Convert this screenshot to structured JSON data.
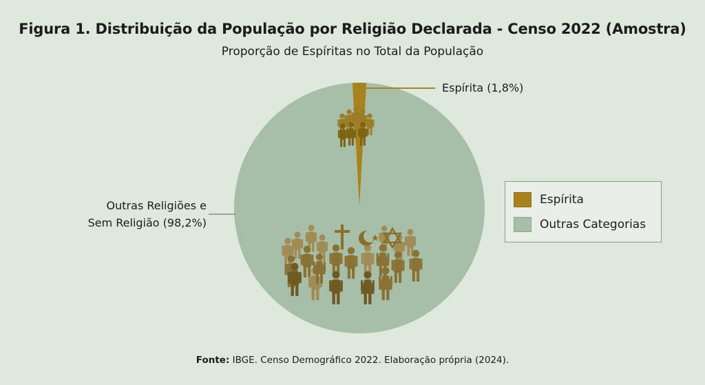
{
  "title": "Figura 1. Distribuição da População por Religião Declarada - Censo 2022 (Amostra)",
  "subtitle": "Proporção de Espíritas no Total da População",
  "labels": {
    "espirita": "Espírita (1,8%)",
    "outras_line1": "Outras Religiões e",
    "outras_line2": "Sem Religião (98,2%)"
  },
  "legend": [
    {
      "label": "Espírita",
      "color": "#a8821e"
    },
    {
      "label": "Outras Categorias",
      "color": "#a7bfa9"
    }
  ],
  "source": {
    "prefix": "Fonte:",
    "text": " IBGE. Censo Demográfico 2022. Elaboração própria (2024)."
  },
  "icons": [
    "person-group-icon",
    "cross-icon",
    "crescent-star-icon",
    "star-of-david-icon"
  ],
  "chart_data": {
    "type": "pie",
    "categories": [
      "Espírita",
      "Outras Categorias"
    ],
    "values": [
      1.8,
      98.2
    ],
    "colors": [
      "#a8821e",
      "#a7bfa9"
    ],
    "legend_position": "right"
  }
}
